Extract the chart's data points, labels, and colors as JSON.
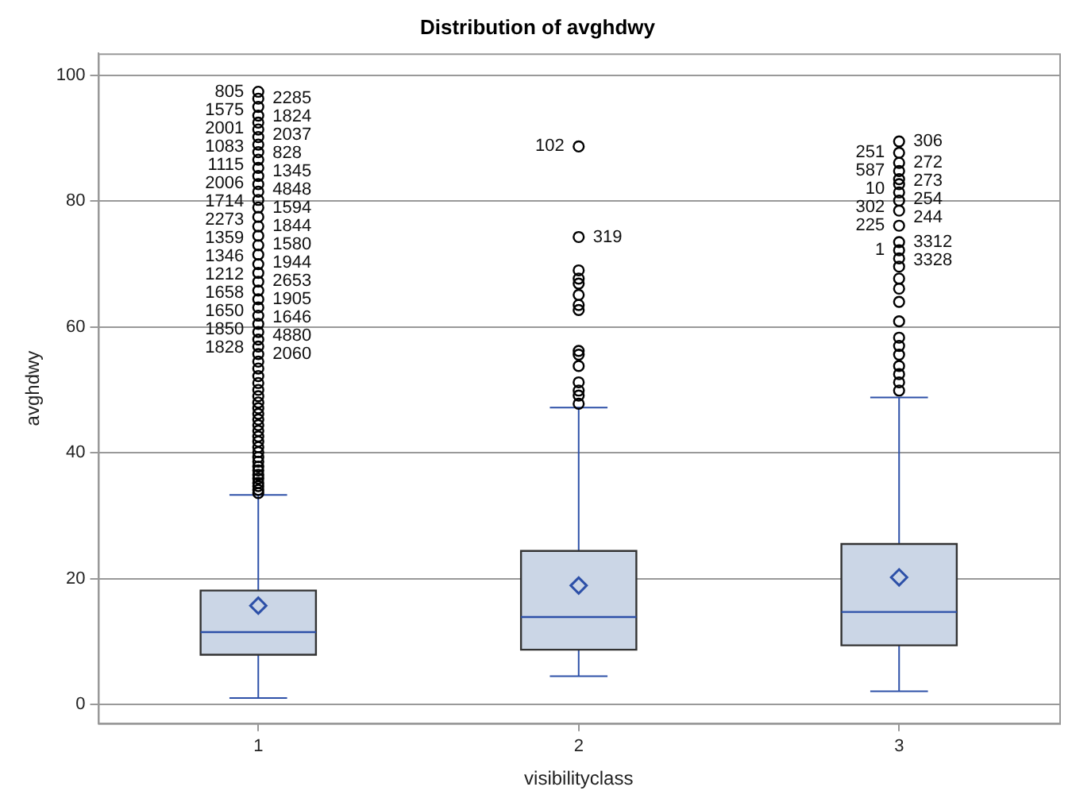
{
  "chart_data": {
    "type": "box",
    "title": "Distribution of avghdwy",
    "xlabel": "visibilityclass",
    "ylabel": "avghdwy",
    "categories": [
      "1",
      "2",
      "3"
    ],
    "ylim": [
      -3,
      103.5
    ],
    "yticks": [
      0,
      20,
      40,
      60,
      80,
      100
    ],
    "grid": "y",
    "color": "#cbd6e6",
    "marker": "circle",
    "boxes": [
      {
        "low": 1.0,
        "q1": 7.9,
        "median": 11.5,
        "q3": 18.1,
        "high": 33.3,
        "mean": 15.7
      },
      {
        "low": 4.5,
        "q1": 8.7,
        "median": 13.9,
        "q3": 24.4,
        "high": 47.2,
        "mean": 18.9
      },
      {
        "low": 2.1,
        "q1": 9.4,
        "median": 14.7,
        "q3": 25.5,
        "high": 48.8,
        "mean": 20.2
      }
    ],
    "series": [
      {
        "type": "scatter",
        "color": "#000000",
        "x": [
          "1",
          "1",
          "1",
          "1",
          "1",
          "1",
          "1",
          "1",
          "1",
          "1",
          "1",
          "1",
          "1",
          "1",
          "1",
          "1",
          "1",
          "1",
          "1",
          "1",
          "1",
          "1",
          "1",
          "1",
          "1",
          "1",
          "1",
          "1",
          "1",
          "1",
          "1",
          "1",
          "1",
          "1",
          "1",
          "1",
          "1",
          "1",
          "1",
          "1",
          "1",
          "1",
          "1",
          "1",
          "1",
          "1",
          "1",
          "1",
          "1",
          "1",
          "1",
          "1",
          "1",
          "1",
          "1",
          "1",
          "1",
          "1",
          "1",
          "2",
          "2",
          "2",
          "2",
          "2",
          "2",
          "2",
          "2",
          "2",
          "2",
          "2",
          "2",
          "2",
          "2",
          "2",
          "3",
          "3",
          "3",
          "3",
          "3",
          "3",
          "3",
          "3",
          "3",
          "3",
          "3",
          "3",
          "3",
          "3",
          "3",
          "3",
          "3",
          "3",
          "3",
          "3",
          "3",
          "3",
          "3",
          "3",
          "3"
        ],
        "values": [
          33.6,
          34.1,
          34.7,
          35.2,
          35.9,
          36.5,
          37.2,
          37.8,
          38.6,
          39.3,
          40.1,
          40.9,
          41.8,
          42.6,
          43.5,
          44.4,
          45.3,
          46.2,
          47.1,
          48.0,
          49.0,
          50.0,
          51.1,
          52.2,
          53.4,
          54.5,
          55.7,
          56.9,
          58.0,
          59.2,
          60.5,
          61.8,
          63.1,
          64.4,
          65.8,
          67.2,
          68.6,
          70.0,
          71.5,
          73.0,
          74.5,
          76.0,
          77.5,
          79.0,
          80.2,
          81.5,
          82.7,
          84.0,
          85.3,
          86.6,
          87.8,
          89.0,
          90.2,
          91.4,
          92.5,
          93.6,
          95.0,
          96.3,
          97.4,
          47.8,
          49.1,
          49.9,
          51.2,
          53.8,
          55.6,
          56.2,
          62.7,
          63.5,
          65.1,
          66.9,
          67.7,
          69.0,
          74.3,
          88.7,
          49.9,
          51.2,
          52.5,
          53.8,
          55.6,
          57.0,
          58.3,
          60.9,
          64.0,
          66.1,
          67.7,
          69.6,
          70.9,
          72.2,
          73.5,
          76.1,
          78.5,
          80.1,
          81.4,
          82.7,
          83.5,
          84.8,
          86.1,
          87.7,
          89.5
        ]
      }
    ],
    "annotations": [
      {
        "text": "805",
        "x": "1",
        "y": 97.4
      },
      {
        "text": "2285",
        "x": "1",
        "y": 96.3
      },
      {
        "text": "1575",
        "x": "1",
        "y": 95.0
      },
      {
        "text": "1824",
        "x": "1",
        "y": 93.6
      },
      {
        "text": "2001",
        "x": "1",
        "y": 92.5
      },
      {
        "text": "2037",
        "x": "1",
        "y": 91.4
      },
      {
        "text": "1083",
        "x": "1",
        "y": 90.2
      },
      {
        "text": "828",
        "x": "1",
        "y": 89.0
      },
      {
        "text": "1115",
        "x": "1",
        "y": 87.8
      },
      {
        "text": "1345",
        "x": "1",
        "y": 86.6
      },
      {
        "text": "2006",
        "x": "1",
        "y": 85.3
      },
      {
        "text": "4848",
        "x": "1",
        "y": 84.0
      },
      {
        "text": "1714",
        "x": "1",
        "y": 82.7
      },
      {
        "text": "1594",
        "x": "1",
        "y": 81.5
      },
      {
        "text": "2273",
        "x": "1",
        "y": 80.2
      },
      {
        "text": "1844",
        "x": "1",
        "y": 79.0
      },
      {
        "text": "1359",
        "x": "1",
        "y": 77.5
      },
      {
        "text": "1580",
        "x": "1",
        "y": 76.0
      },
      {
        "text": "1346",
        "x": "1",
        "y": 74.5
      },
      {
        "text": "1944",
        "x": "1",
        "y": 73.0
      },
      {
        "text": "1212",
        "x": "1",
        "y": 71.5
      },
      {
        "text": "2653",
        "x": "1",
        "y": 70.0
      },
      {
        "text": "1658",
        "x": "1",
        "y": 68.6
      },
      {
        "text": "1905",
        "x": "1",
        "y": 67.2
      },
      {
        "text": "1650",
        "x": "1",
        "y": 65.8
      },
      {
        "text": "1646",
        "x": "1",
        "y": 64.4
      },
      {
        "text": "1850",
        "x": "1",
        "y": 63.1
      },
      {
        "text": "4880",
        "x": "1",
        "y": 61.8
      },
      {
        "text": "1828",
        "x": "1",
        "y": 60.5
      },
      {
        "text": "2060",
        "x": "1",
        "y": 59.2
      },
      {
        "text": "102",
        "x": "2",
        "y": 88.7
      },
      {
        "text": "319",
        "x": "2",
        "y": 74.3
      },
      {
        "text": "306",
        "x": "3",
        "y": 89.5
      },
      {
        "text": "251",
        "x": "3",
        "y": 87.7
      },
      {
        "text": "272",
        "x": "3",
        "y": 86.1
      },
      {
        "text": "587",
        "x": "3",
        "y": 84.8
      },
      {
        "text": "273",
        "x": "3",
        "y": 83.5
      },
      {
        "text": "10",
        "x": "3",
        "y": 82.7
      },
      {
        "text": "254",
        "x": "3",
        "y": 81.4
      },
      {
        "text": "302",
        "x": "3",
        "y": 80.1
      },
      {
        "text": "244",
        "x": "3",
        "y": 78.5
      },
      {
        "text": "225",
        "x": "3",
        "y": 76.1
      },
      {
        "text": "3312",
        "x": "3",
        "y": 73.5
      },
      {
        "text": "1",
        "x": "3",
        "y": 72.2
      },
      {
        "text": "3328",
        "x": "3",
        "y": 70.9
      }
    ]
  }
}
